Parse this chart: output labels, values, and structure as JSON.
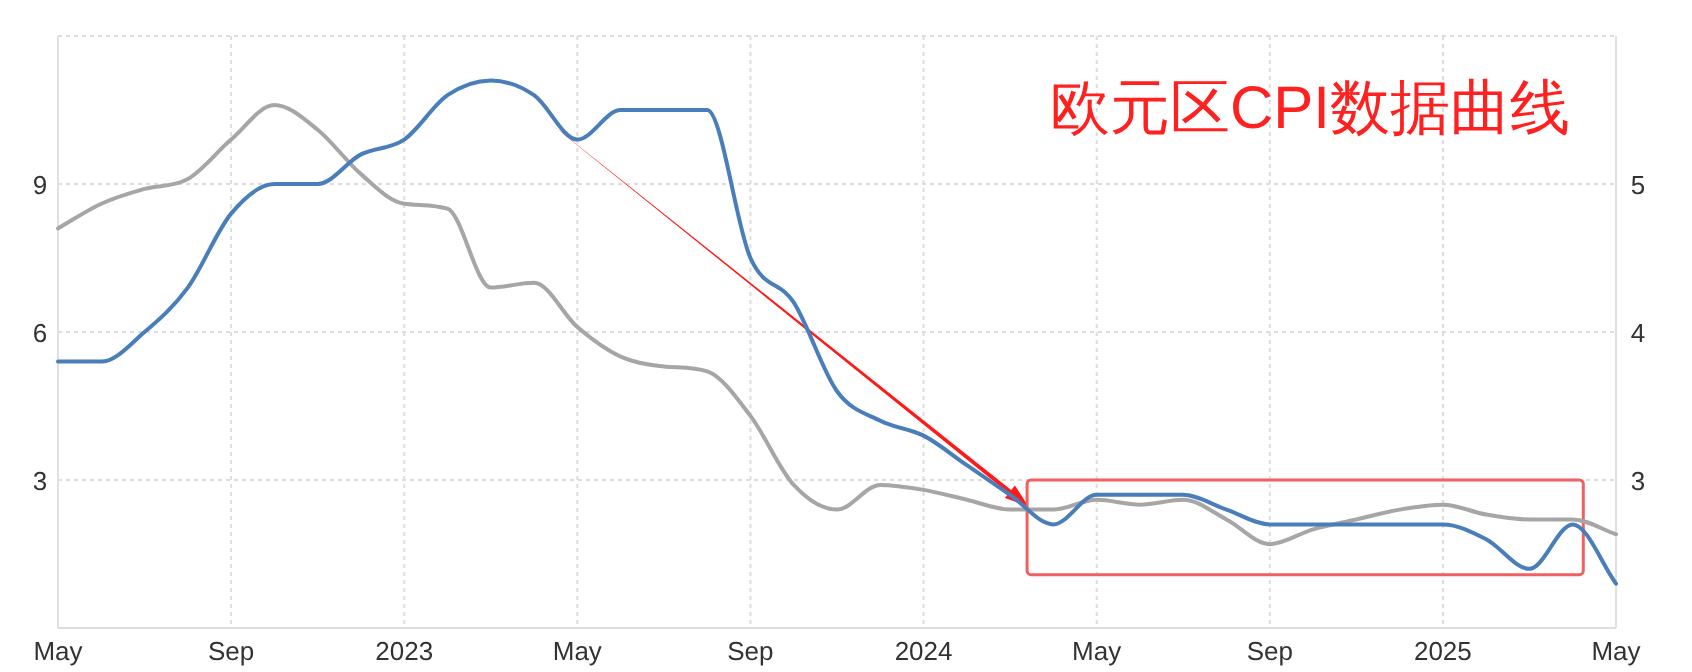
{
  "chart_data": {
    "type": "line",
    "annotations": [
      "欧元区CPI数据曲线"
    ],
    "x": [
      "2022-05",
      "2022-06",
      "2022-07",
      "2022-08",
      "2022-09",
      "2022-10",
      "2022-11",
      "2022-12",
      "2023-01",
      "2023-02",
      "2023-03",
      "2023-04",
      "2023-05",
      "2023-06",
      "2023-07",
      "2023-08",
      "2023-09",
      "2023-10",
      "2023-11",
      "2023-12",
      "2024-01",
      "2024-02",
      "2024-03",
      "2024-04",
      "2024-05",
      "2024-06",
      "2024-07",
      "2024-08",
      "2024-09",
      "2024-10",
      "2024-11",
      "2024-12",
      "2025-01",
      "2025-02",
      "2025-03",
      "2025-04",
      "2025-05"
    ],
    "series": [
      {
        "color": "#a6a6a6",
        "values": [
          8.1,
          8.6,
          8.9,
          9.1,
          9.9,
          10.6,
          10.1,
          9.2,
          8.6,
          8.5,
          6.9,
          7.0,
          6.1,
          5.5,
          5.3,
          5.2,
          4.3,
          2.9,
          2.4,
          2.9,
          2.8,
          2.6,
          2.4,
          2.4,
          2.6,
          2.5,
          2.6,
          2.2,
          1.7,
          2.0,
          2.2,
          2.4,
          2.5,
          2.3,
          2.2,
          2.2,
          1.9
        ]
      },
      {
        "color": "#4a7ebb",
        "axis": "y2",
        "values": [
          3.8,
          3.8,
          4.0,
          4.3,
          4.8,
          5.0,
          5.0,
          5.2,
          5.3,
          5.6,
          5.7,
          5.6,
          5.3,
          5.5,
          5.5,
          5.5,
          4.5,
          4.2,
          3.6,
          3.4,
          3.3,
          3.1,
          2.9,
          2.7,
          2.9,
          2.9,
          2.9,
          2.8,
          2.7,
          2.7,
          2.7,
          2.7,
          2.7,
          2.6,
          2.4,
          2.7,
          2.3
        ]
      }
    ],
    "xlim": [
      "2022-05",
      "2025-05"
    ],
    "xticks": [
      {
        "value": "2022-05",
        "label": "May"
      },
      {
        "value": "2022-09",
        "label": "Sep"
      },
      {
        "value": "2023-01",
        "label": "2023"
      },
      {
        "value": "2023-05",
        "label": "May"
      },
      {
        "value": "2023-09",
        "label": "Sep"
      },
      {
        "value": "2024-01",
        "label": "2024"
      },
      {
        "value": "2024-05",
        "label": "May"
      },
      {
        "value": "2024-09",
        "label": "Sep"
      },
      {
        "value": "2025-01",
        "label": "2025"
      },
      {
        "value": "2025-05",
        "label": "May"
      }
    ],
    "ylim": [
      0,
      12
    ],
    "yticks": [
      3,
      6,
      9
    ],
    "y2lim": [
      2,
      6
    ],
    "y2ticks": [
      3,
      4,
      5
    ],
    "grid": true,
    "marker": "none",
    "line_style": "solid"
  }
}
